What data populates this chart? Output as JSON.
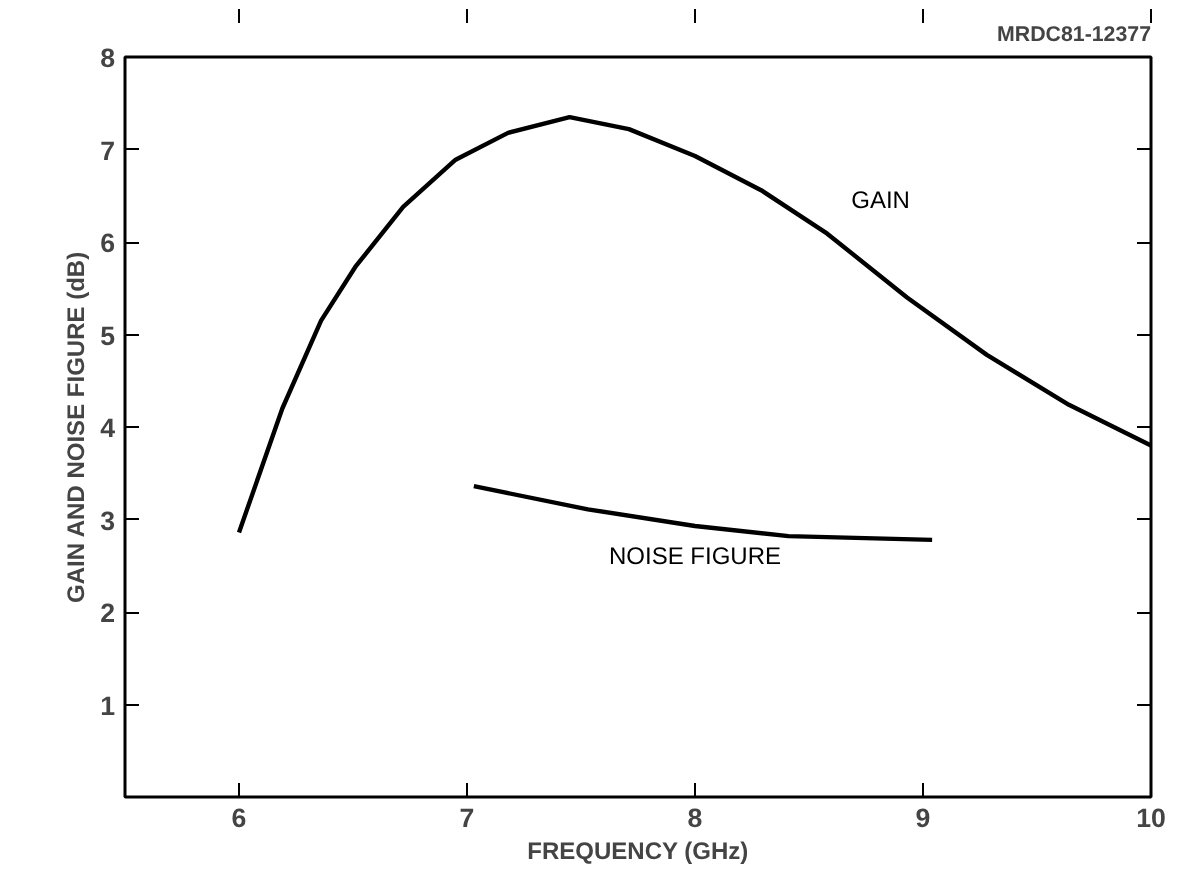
{
  "chart_data": {
    "type": "line",
    "xlabel": "FREQUENCY (GHz)",
    "ylabel": "GAIN AND NOISE FIGURE (dB)",
    "annotations": [
      "MRDC81-12377"
    ],
    "xlim": [
      5.5,
      10
    ],
    "xticks": [
      6,
      7,
      8,
      9,
      10
    ],
    "ylim": [
      0,
      8
    ],
    "yticks": [
      1,
      2,
      3,
      4,
      5,
      6,
      7,
      8
    ],
    "grid": false,
    "legend": false,
    "marker": "none",
    "line_style": "solid",
    "series": [
      {
        "name": "GAIN",
        "color": "#000000",
        "x": [
          6.0,
          6.19,
          6.36,
          6.51,
          6.72,
          6.95,
          7.18,
          7.45,
          7.71,
          8.0,
          8.29,
          8.58,
          8.93,
          9.28,
          9.64,
          10.0
        ],
        "values": [
          2.86,
          4.2,
          5.15,
          5.73,
          6.38,
          6.89,
          7.18,
          7.35,
          7.22,
          6.93,
          6.56,
          6.09,
          5.4,
          4.78,
          4.24,
          3.8
        ]
      },
      {
        "name": "NOISE FIGURE",
        "color": "#000000",
        "x": [
          7.03,
          7.53,
          8.0,
          8.41,
          9.04
        ],
        "values": [
          3.36,
          3.11,
          2.93,
          2.82,
          2.78
        ]
      }
    ]
  }
}
